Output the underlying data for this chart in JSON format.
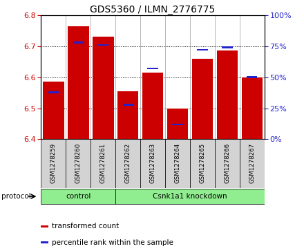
{
  "title": "GDS5360 / ILMN_2776775",
  "samples": [
    "GSM1278259",
    "GSM1278260",
    "GSM1278261",
    "GSM1278262",
    "GSM1278263",
    "GSM1278264",
    "GSM1278265",
    "GSM1278266",
    "GSM1278267"
  ],
  "transformed_counts": [
    6.585,
    6.765,
    6.73,
    6.555,
    6.615,
    6.5,
    6.66,
    6.685,
    6.6
  ],
  "percentile_ranks": [
    38,
    78,
    76,
    28,
    57,
    12,
    72,
    74,
    50
  ],
  "ylim_left": [
    6.4,
    6.8
  ],
  "ylim_right": [
    0,
    100
  ],
  "yticks_left": [
    6.4,
    6.5,
    6.6,
    6.7,
    6.8
  ],
  "yticks_right": [
    0,
    25,
    50,
    75,
    100
  ],
  "bar_color": "#cc0000",
  "percentile_color": "#2222cc",
  "bg_color": "#ffffff",
  "green_color": "#90ee90",
  "gray_color": "#d3d3d3",
  "legend_items": [
    {
      "label": "transformed count",
      "color": "#cc0000"
    },
    {
      "label": "percentile rank within the sample",
      "color": "#2222cc"
    }
  ],
  "bar_width": 0.85,
  "base_value": 6.4,
  "n_control": 3
}
